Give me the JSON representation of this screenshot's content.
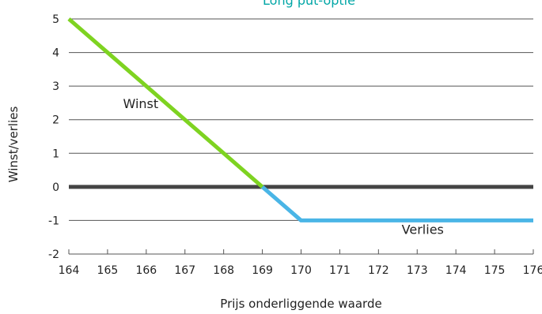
{
  "chart_data": {
    "type": "line",
    "title": "Long put-optie",
    "xlabel": "Prijs onderliggende waarde",
    "ylabel": "Winst/verlies",
    "x_ticks": [
      "164",
      "165",
      "166",
      "167",
      "168",
      "169",
      "170",
      "171",
      "172",
      "173",
      "174",
      "175",
      "176"
    ],
    "y_ticks": [
      "5",
      "4",
      "3",
      "2",
      "1",
      "0",
      "-1",
      "-2"
    ],
    "xlim": [
      164,
      176
    ],
    "ylim": [
      -2,
      5
    ],
    "grid": "horizontal",
    "zero_line": {
      "y": 0,
      "color": "#444444"
    },
    "series": [
      {
        "x": [
          164,
          165,
          166,
          167,
          168,
          169,
          170,
          171,
          172,
          173,
          174,
          175,
          176
        ],
        "y": [
          5,
          4,
          3,
          2,
          1,
          0,
          -1,
          -1,
          -1,
          -1,
          -1,
          -1,
          -1
        ],
        "profit_color": "#7ed321",
        "loss_color": "#4ab5e6"
      }
    ],
    "annotations": [
      {
        "text": "Winst",
        "x": 165.4,
        "y": 2.35
      },
      {
        "text": "Verlies",
        "x": 172.6,
        "y": -1.4
      }
    ]
  }
}
